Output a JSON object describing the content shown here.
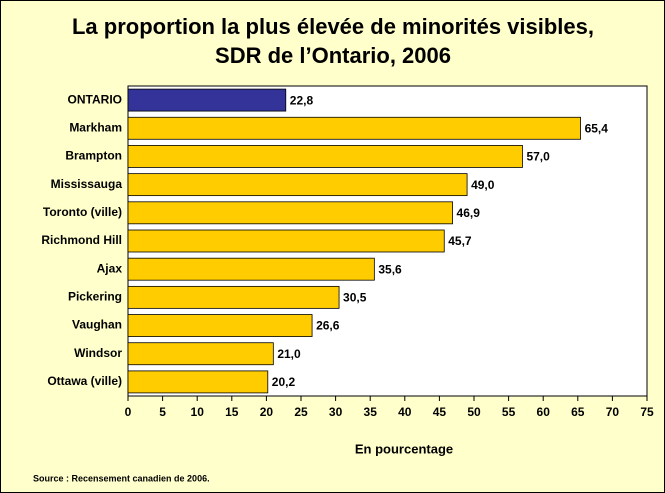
{
  "chart_data": {
    "type": "barh",
    "title": [
      "La proportion la plus élevée de minorités visibles,",
      "SDR de l’Ontario, 2006"
    ],
    "categories": [
      "ONTARIO",
      "Markham",
      "Brampton",
      "Mississauga",
      "Toronto (ville)",
      "Richmond Hill",
      "Ajax",
      "Pickering",
      "Vaughan",
      "Windsor",
      "Ottawa (ville)"
    ],
    "values": [
      22.8,
      65.4,
      57.0,
      49.0,
      46.9,
      45.7,
      35.6,
      30.5,
      26.6,
      21.0,
      20.2
    ],
    "value_labels": [
      "22,8",
      "65,4",
      "57,0",
      "49,0",
      "46,9",
      "45,7",
      "35,6",
      "30,5",
      "26,6",
      "21,0",
      "20,2"
    ],
    "colors": [
      "#333399",
      "#ffcc00",
      "#ffcc00",
      "#ffcc00",
      "#ffcc00",
      "#ffcc00",
      "#ffcc00",
      "#ffcc00",
      "#ffcc00",
      "#ffcc00",
      "#ffcc00"
    ],
    "xlim": [
      0,
      75
    ],
    "xticks": [
      0,
      5,
      10,
      15,
      20,
      25,
      30,
      35,
      40,
      45,
      50,
      55,
      60,
      65,
      70,
      75
    ],
    "xlabel": "En pourcentage",
    "source": "Source : Recensement canadien de 2006."
  }
}
